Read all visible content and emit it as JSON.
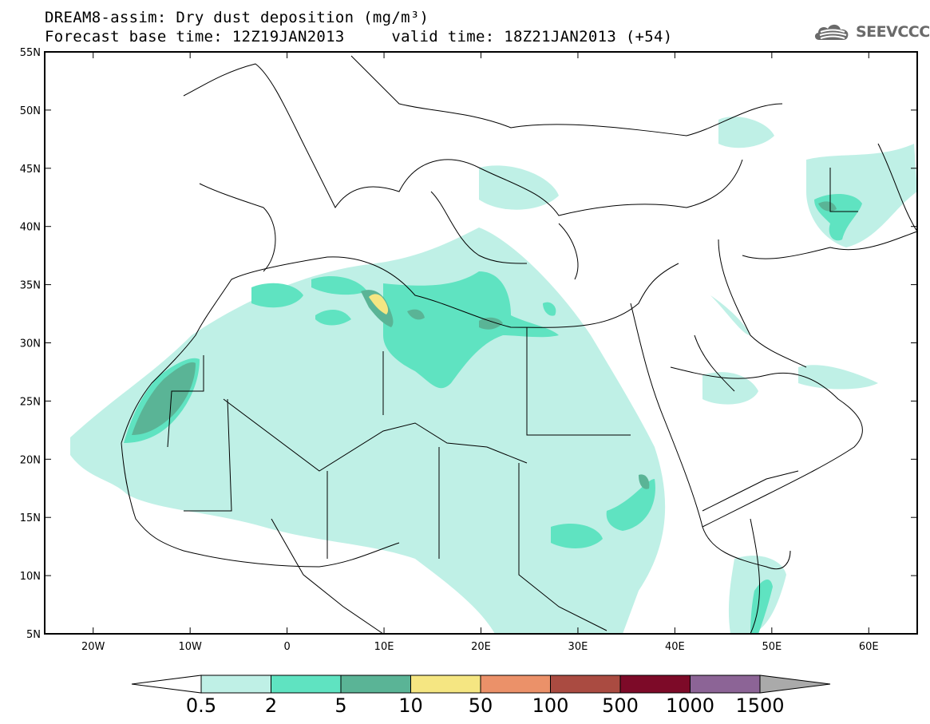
{
  "title": {
    "line1": "DREAM8-assim: Dry dust deposition (mg/m³)",
    "line2": "Forecast base time: 12Z19JAN2013     valid time: 18Z21JAN2013 (+54)"
  },
  "logo": {
    "text": "SEEVCCC",
    "icon": "cloud-icon"
  },
  "axes": {
    "lat_labels": [
      "55N",
      "50N",
      "45N",
      "40N",
      "35N",
      "30N",
      "25N",
      "20N",
      "15N",
      "10N",
      "5N"
    ],
    "lon_labels": [
      "20W",
      "10W",
      "0",
      "10E",
      "20E",
      "30E",
      "40E",
      "50E",
      "60E"
    ],
    "lon_range": [
      -25,
      65
    ],
    "lat_range": [
      5,
      55
    ]
  },
  "colorbar": {
    "labels": [
      "0.5",
      "2",
      "5",
      "10",
      "50",
      "100",
      "500",
      "1000",
      "1500"
    ],
    "colors": [
      "#ffffff",
      "#bff0e6",
      "#5fe3c1",
      "#5ab496",
      "#f5e682",
      "#eb9169",
      "#aa4b41",
      "#7d0a28",
      "#8c6496",
      "#aaaaaa"
    ]
  },
  "map_colors": {
    "c1": "#bff0e6",
    "c2": "#5fe3c1",
    "c3": "#5ab496",
    "c4": "#f5e682"
  }
}
